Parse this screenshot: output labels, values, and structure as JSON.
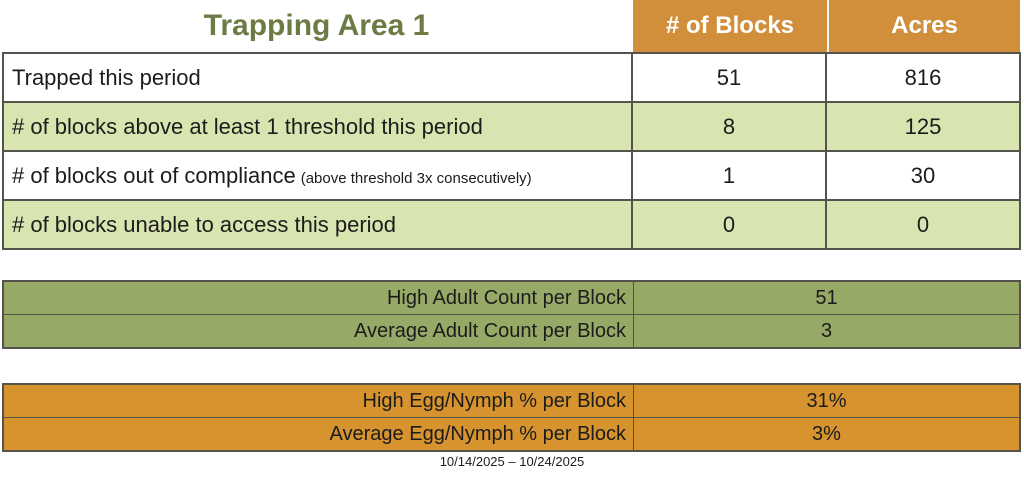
{
  "title": "Trapping Area 1",
  "colors": {
    "title_green": "#6C7B44",
    "header_orange": "#D28F3B",
    "row_green": "#D9E5B0",
    "olive": "#97A966",
    "deep_orange": "#D6932E",
    "border_dark": "#54544C",
    "text": "#1C1C1C"
  },
  "main_table": {
    "columns": [
      "# of Blocks",
      "Acres"
    ],
    "rows": [
      {
        "label": "Trapped this period",
        "note": "",
        "blocks": "51",
        "acres": "816"
      },
      {
        "label": "# of blocks above at least 1 threshold this period",
        "note": "",
        "blocks": "8",
        "acres": "125"
      },
      {
        "label": "# of blocks out of compliance",
        "note": "(above threshold 3x consecutively)",
        "blocks": "1",
        "acres": "30"
      },
      {
        "label": "# of blocks unable to access this period",
        "note": "",
        "blocks": "0",
        "acres": "0"
      }
    ]
  },
  "adult_table": {
    "rows": [
      {
        "label": "High Adult Count per Block",
        "value": "51"
      },
      {
        "label": "Average Adult Count per Block",
        "value": "3"
      }
    ]
  },
  "egg_table": {
    "rows": [
      {
        "label": "High Egg/Nymph % per Block",
        "value": "31%"
      },
      {
        "label": "Average Egg/Nymph % per Block",
        "value": "3%"
      }
    ]
  },
  "footer": {
    "date_range": "10/14/2025 – 10/24/2025"
  }
}
